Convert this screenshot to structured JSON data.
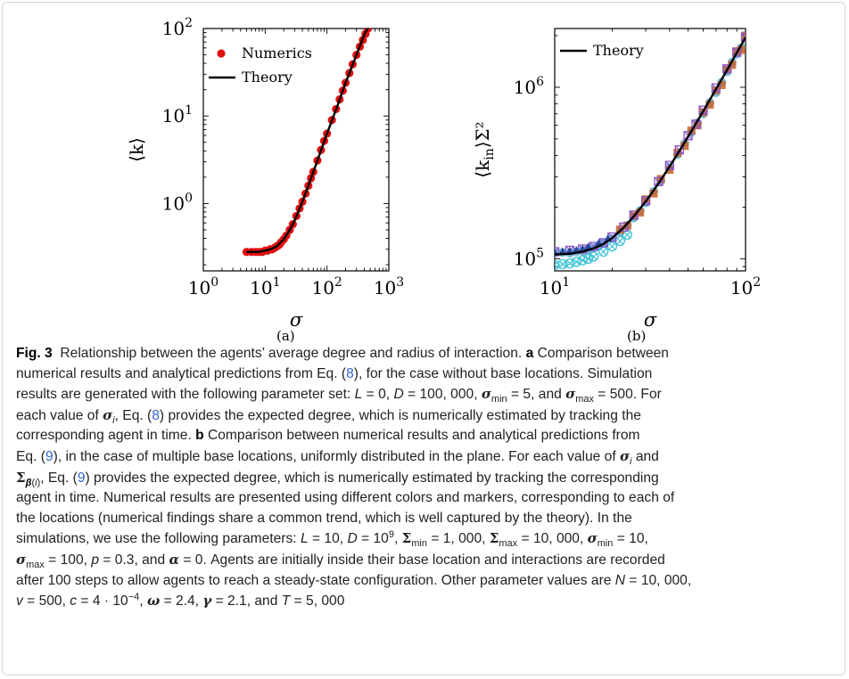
{
  "figure": {
    "subfig_labels": [
      "(a)",
      "(b)"
    ],
    "caption": {
      "fig_label": "Fig. 3",
      "title": "Relationship between the agents’ average degree and radius of interaction.",
      "part_a_label": "a",
      "part_a_text_1": "Comparison between",
      "line2": "numerical results and analytical predictions from Eq. (8), for the case without base locations. Simulation",
      "line3": "results are generated with the following parameter set: L = 0, D = 100, 000, σmin = 5, and σmax = 500. For",
      "line4": "each value of σi, Eq. (8) provides the expected degree, which is numerically estimated by tracking the",
      "line5_pre": "corresponding agent in time.",
      "part_b_label": "b",
      "line5_post": "Comparison between numerical results and analytical predictions from",
      "line6": "Eq. (9), in the case of multiple base locations, uniformly distributed in the plane. For each value of σi and",
      "line7": "Σβ(i), Eq. (9) provides the expected degree, which is numerically estimated by tracking the corresponding",
      "line8": "agent in time. Numerical results are presented using different colors and markers, corresponding to each of",
      "line9": "the locations (numerical findings share a common trend, which is well captured by the theory). In the",
      "line10": "simulations, we use the following parameters: L = 10, D = 10^9, Σmin = 1, 000, Σmax = 10, 000, σmin = 10,",
      "line11": "σmax = 100, p = 0.3, and α = 0. Agents are initially inside their base location and interactions are recorded",
      "line12": "after 100 steps to allow agents to reach a steady-state configuration. Other parameter values are N = 10, 000,",
      "line13": "v = 500, c = 4 · 10^−4, ω = 2.4, γ = 2.1, and T = 5, 000"
    }
  },
  "chart_data": [
    {
      "type": "scatter",
      "xlabel": "σ",
      "ylabel": "⟨k⟩",
      "xscale": "log",
      "yscale": "log",
      "xlim": [
        1,
        1000
      ],
      "ylim": [
        0.17,
        100
      ],
      "x_ticks": [
        "10^0",
        "10^1",
        "10^2",
        "10^3"
      ],
      "y_ticks": [
        "10^0",
        "10^1",
        "10^2"
      ],
      "legend_position": "top-left",
      "colors": {
        "numerics": "#e01010",
        "theory": "#000000"
      },
      "series": [
        {
          "name": "Numerics",
          "kind": "markers",
          "x": [
            5,
            6,
            7,
            8,
            9,
            10,
            11,
            12,
            13,
            14,
            15,
            16,
            17,
            18,
            20,
            22,
            25,
            28,
            32,
            36,
            40,
            45,
            50,
            55,
            60,
            70,
            80,
            90,
            100,
            120,
            140,
            160,
            180,
            200,
            230,
            260,
            300,
            340,
            380,
            420,
            460,
            500
          ],
          "y": [
            0.28,
            0.28,
            0.28,
            0.28,
            0.28,
            0.29,
            0.29,
            0.3,
            0.3,
            0.31,
            0.32,
            0.33,
            0.34,
            0.36,
            0.39,
            0.43,
            0.5,
            0.58,
            0.72,
            0.88,
            1.05,
            1.3,
            1.6,
            1.95,
            2.3,
            3.1,
            4.1,
            5.2,
            6.3,
            9,
            12,
            15.5,
            19.5,
            24,
            31,
            39,
            50,
            62,
            74,
            87,
            100,
            112
          ]
        },
        {
          "name": "Theory",
          "kind": "line",
          "x": [
            5,
            8,
            10,
            12,
            15,
            20,
            25,
            30,
            40,
            50,
            70,
            100,
            150,
            200,
            300,
            400,
            500
          ],
          "y": [
            0.28,
            0.28,
            0.29,
            0.3,
            0.32,
            0.39,
            0.5,
            0.64,
            1.05,
            1.6,
            3.1,
            6.3,
            13.5,
            24,
            50,
            85,
            112
          ]
        }
      ]
    },
    {
      "type": "scatter",
      "xlabel": "σ",
      "ylabel": "⟨k_in⟩Σ²",
      "xscale": "log",
      "yscale": "log",
      "xlim": [
        10,
        100
      ],
      "ylim": [
        85000,
        2200000
      ],
      "x_ticks": [
        "10^1",
        "10^2"
      ],
      "y_ticks": [
        "10^5",
        "10^6"
      ],
      "legend_position": "top-left",
      "colors": {
        "theory": "#000000",
        "loc1": "#4aa3c8",
        "loc2": "#c86428",
        "loc3": "#8a55c8",
        "loc4": "#44c4d8",
        "loc5": "#2a4a9a"
      },
      "series": [
        {
          "name": "Theory",
          "kind": "line",
          "x": [
            10,
            12,
            14,
            16,
            18,
            20,
            23,
            26,
            30,
            35,
            40,
            45,
            50,
            60,
            70,
            80,
            90,
            100
          ],
          "y": [
            106000,
            107000,
            110000,
            115000,
            122000,
            132000,
            152000,
            177000,
            216000,
            275000,
            345000,
            425000,
            515000,
            725000,
            975000,
            1260000,
            1590000,
            1950000
          ]
        },
        {
          "kind": "markers",
          "marker": "circle",
          "x": [
            10,
            11,
            12,
            13,
            14,
            15,
            16,
            17,
            18,
            20,
            22,
            24,
            26,
            28,
            30,
            33,
            36,
            40,
            44,
            48,
            52,
            56,
            60,
            65,
            70,
            75,
            80,
            85,
            90,
            95,
            100
          ],
          "y": [
            108000,
            109000,
            108000,
            110000,
            111000,
            113000,
            116000,
            119000,
            123000,
            131000,
            143000,
            157000,
            173000,
            191000,
            212000,
            247000,
            285000,
            342000,
            405000,
            470000,
            545000,
            620000,
            700000,
            815000,
            930000,
            1070000,
            1230000,
            1400000,
            1560000,
            1700000,
            1980000
          ]
        },
        {
          "kind": "markers",
          "marker": "square",
          "x": [
            22,
            24,
            26,
            28,
            30,
            33,
            36,
            40,
            44,
            48,
            52,
            56,
            60,
            65,
            70,
            75,
            80,
            85,
            90,
            95,
            100
          ],
          "y": [
            148000,
            156000,
            178000,
            186000,
            222000,
            240000,
            292000,
            330000,
            415000,
            455000,
            560000,
            600000,
            715000,
            790000,
            960000,
            1030000,
            1270000,
            1350000,
            1620000,
            1650000,
            2000000
          ]
        },
        {
          "kind": "markers",
          "marker": "square-cross",
          "x": [
            10,
            12,
            14,
            16,
            18,
            20,
            23,
            26,
            30,
            35,
            40,
            45,
            50,
            55,
            60,
            70,
            80,
            90,
            100
          ],
          "y": [
            110000,
            112000,
            114000,
            118000,
            124000,
            134000,
            153000,
            180000,
            218000,
            282000,
            350000,
            432000,
            522000,
            610000,
            735000,
            990000,
            1280000,
            1600000,
            1960000
          ]
        },
        {
          "kind": "markers",
          "marker": "circle-x",
          "x": [
            10,
            11,
            12,
            13,
            14,
            15,
            16,
            18,
            20,
            22,
            24
          ],
          "y": [
            92000,
            93000,
            94000,
            96000,
            98000,
            100000,
            103000,
            110000,
            118000,
            127000,
            138000
          ]
        },
        {
          "kind": "markers",
          "marker": "triangle",
          "x": [
            10,
            11,
            12,
            13,
            14,
            15,
            17,
            19
          ],
          "y": [
            109000,
            110000,
            111000,
            112000,
            114000,
            117000,
            123000,
            131000
          ]
        }
      ]
    }
  ]
}
